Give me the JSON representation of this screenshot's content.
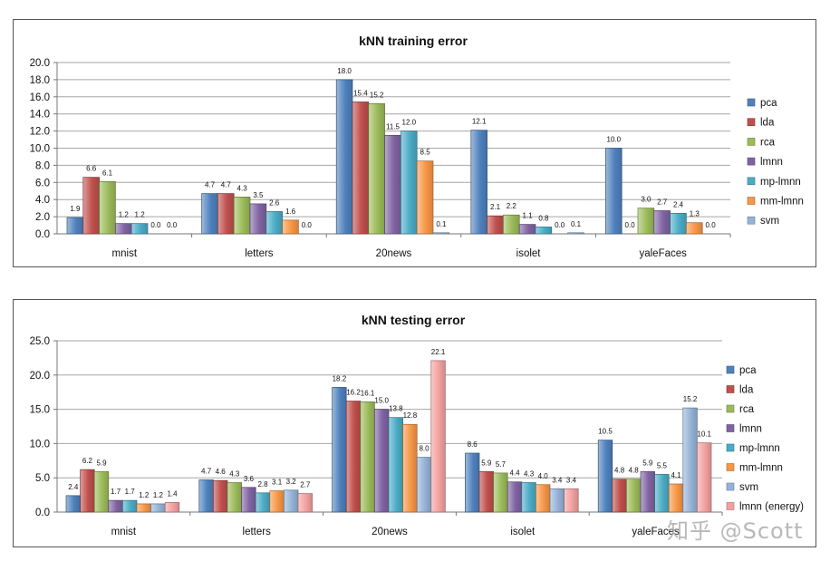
{
  "chart_data": [
    {
      "type": "bar",
      "title": "kNN training error",
      "categories": [
        "mnist",
        "letters",
        "20news",
        "isolet",
        "yaleFaces"
      ],
      "ylim": [
        0,
        20
      ],
      "yticks": [
        "0.0",
        "2.0",
        "4.0",
        "6.0",
        "8.0",
        "10.0",
        "12.0",
        "14.0",
        "16.0",
        "18.0",
        "20.0"
      ],
      "grid": true,
      "legend_position": "right",
      "series": [
        {
          "name": "pca",
          "color": "#4f81bd",
          "values": [
            1.9,
            4.7,
            18.0,
            12.1,
            10.0
          ],
          "labels": [
            "1.9",
            "4.7",
            "18.0",
            "12.1",
            "10.0"
          ]
        },
        {
          "name": "lda",
          "color": "#c0504d",
          "values": [
            6.6,
            4.7,
            15.4,
            2.1,
            0.0
          ],
          "labels": [
            "6.6",
            "4.7",
            "15.4",
            "2.1",
            "0.0"
          ]
        },
        {
          "name": "rca",
          "color": "#9bbb59",
          "values": [
            6.1,
            4.3,
            15.2,
            2.2,
            3.0
          ],
          "labels": [
            "6.1",
            "4.3",
            "15.2",
            "2.2",
            "3.0"
          ]
        },
        {
          "name": "lmnn",
          "color": "#8064a2",
          "values": [
            1.2,
            3.5,
            11.5,
            1.1,
            2.7
          ],
          "labels": [
            "1.2",
            "3.5",
            "11.5",
            "1.1",
            "2.7"
          ]
        },
        {
          "name": "mp-lmnn",
          "color": "#4bacc6",
          "values": [
            1.2,
            2.6,
            12.0,
            0.8,
            2.4
          ],
          "labels": [
            "1.2",
            "2.6",
            "12.0",
            "0.8",
            "2.4"
          ]
        },
        {
          "name": "mm-lmnn",
          "color": "#f79646",
          "values": [
            0.0,
            1.6,
            8.5,
            0.0,
            1.3
          ],
          "labels": [
            "0.0",
            "1.6",
            "8.5",
            "0.0",
            "1.3"
          ]
        },
        {
          "name": "svm",
          "color": "#95b3d7",
          "values": [
            0.0,
            0.0,
            0.1,
            0.1,
            0.0
          ],
          "labels": [
            "0.0",
            "0.0",
            "0.1",
            "0.1",
            "0.0"
          ]
        }
      ]
    },
    {
      "type": "bar",
      "title": "kNN testing error",
      "categories": [
        "mnist",
        "letters",
        "20news",
        "isolet",
        "yaleFaces"
      ],
      "ylim": [
        0,
        25
      ],
      "yticks": [
        "0.0",
        "5.0",
        "10.0",
        "15.0",
        "20.0",
        "25.0"
      ],
      "grid": true,
      "legend_position": "right",
      "series": [
        {
          "name": "pca",
          "color": "#4f81bd",
          "values": [
            2.4,
            4.7,
            18.2,
            8.6,
            10.5
          ],
          "labels": [
            "2.4",
            "4.7",
            "18.2",
            "8.6",
            "10.5"
          ]
        },
        {
          "name": "lda",
          "color": "#c0504d",
          "values": [
            6.2,
            4.6,
            16.2,
            5.9,
            4.8
          ],
          "labels": [
            "6.2",
            "4.6",
            "16.2",
            "5.9",
            "4.8"
          ]
        },
        {
          "name": "rca",
          "color": "#9bbb59",
          "values": [
            5.9,
            4.3,
            16.1,
            5.7,
            4.8
          ],
          "labels": [
            "5.9",
            "4.3",
            "16.1",
            "5.7",
            "4.8"
          ]
        },
        {
          "name": "lmnn",
          "color": "#8064a2",
          "values": [
            1.7,
            3.6,
            15.0,
            4.4,
            5.9
          ],
          "labels": [
            "1.7",
            "3.6",
            "15.0",
            "4.4",
            "5.9"
          ]
        },
        {
          "name": "mp-lmnn",
          "color": "#4bacc6",
          "values": [
            1.7,
            2.8,
            13.8,
            4.3,
            5.5
          ],
          "labels": [
            "1.7",
            "2.8",
            "13.8",
            "4.3",
            "5.5"
          ]
        },
        {
          "name": "mm-lmnn",
          "color": "#f79646",
          "values": [
            1.2,
            3.1,
            12.8,
            4.0,
            4.1
          ],
          "labels": [
            "1.2",
            "3.1",
            "12.8",
            "4.0",
            "4.1"
          ]
        },
        {
          "name": "svm",
          "color": "#95b3d7",
          "values": [
            1.2,
            3.2,
            8.0,
            3.4,
            15.2
          ],
          "labels": [
            "1.2",
            "3.2",
            "8.0",
            "3.4",
            "15.2"
          ]
        },
        {
          "name": "lmnn (energy)",
          "color": "#f2a1a0",
          "values": [
            1.4,
            2.7,
            22.1,
            3.4,
            10.1
          ],
          "labels": [
            "1.4",
            "2.7",
            "22.1",
            "3.4",
            "10.1"
          ]
        }
      ]
    }
  ],
  "watermark": "知乎 @Scott"
}
